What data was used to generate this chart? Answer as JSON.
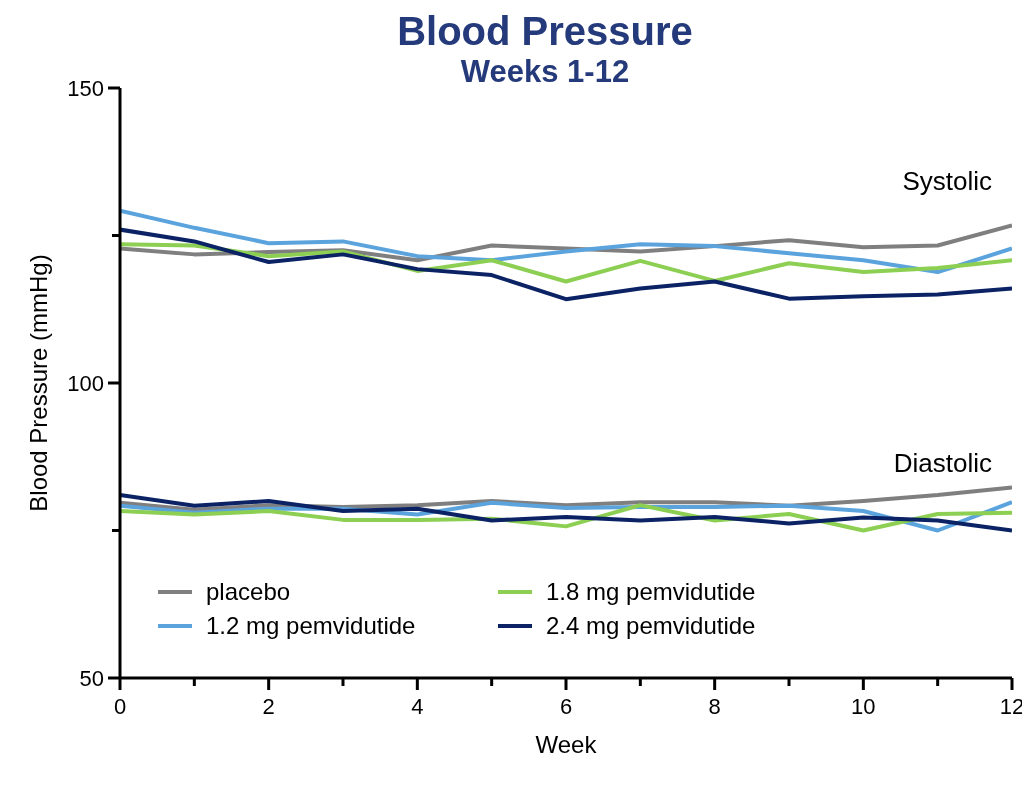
{
  "chart_data": {
    "type": "line",
    "title": "Blood Pressure",
    "subtitle": "Weeks 1-12",
    "xlabel": "Week",
    "ylabel": "Blood Pressure (mmHg)",
    "x": [
      0,
      1,
      2,
      3,
      4,
      5,
      6,
      7,
      8,
      9,
      10,
      11,
      12
    ],
    "series": [
      {
        "name": "placebo",
        "color": "#7f7f7f",
        "values": [
          122.8,
          121.8,
          122.2,
          122.5,
          120.8,
          123.3,
          122.8,
          122.3,
          123.2,
          124.2,
          123,
          123.3,
          126.7
        ]
      },
      {
        "name": "1.2 mg pemvidutide",
        "color": "#5ba3dd",
        "values": [
          129.2,
          126.3,
          123.7,
          124,
          121.5,
          120.8,
          122.3,
          123.5,
          123.2,
          122,
          120.8,
          118.8,
          122.8
        ]
      },
      {
        "name": "1.8 mg pemvidutide",
        "color": "#8ccf52",
        "values": [
          123.5,
          123.3,
          121.5,
          122.3,
          119,
          120.8,
          117.2,
          120.7,
          117.3,
          120.3,
          118.8,
          119.5,
          120.8
        ]
      },
      {
        "name": "2.4 mg pemvidutide",
        "color": "#0b2265",
        "values": [
          126,
          124,
          120.5,
          121.8,
          119.3,
          118.3,
          114.2,
          116,
          117.2,
          114.3,
          114.7,
          115,
          116
        ]
      },
      {
        "color": "#7f7f7f",
        "values": [
          79.7,
          78.5,
          79.3,
          79,
          79.3,
          80,
          79.3,
          79.8,
          79.8,
          79.2,
          80,
          81,
          82.3
        ]
      },
      {
        "color": "#5ba3dd",
        "values": [
          79.2,
          78,
          78.7,
          78.7,
          77.7,
          79.7,
          78.8,
          79,
          79,
          79.2,
          78.3,
          75,
          79.8
        ]
      },
      {
        "color": "#8ccf52",
        "values": [
          78.3,
          77.7,
          78.3,
          76.8,
          76.8,
          77,
          75.7,
          79.3,
          76.7,
          77.8,
          75,
          77.8,
          78
        ]
      },
      {
        "color": "#0b2265",
        "values": [
          81,
          79.2,
          80,
          78.3,
          78.7,
          76.7,
          77.3,
          76.7,
          77.3,
          76.2,
          77.2,
          76.7,
          75
        ]
      }
    ],
    "annotations": [
      "Systolic",
      "Diastolic"
    ],
    "xlim": [
      0,
      12
    ],
    "xticks": [
      0,
      {
        "value": 1,
        "label": null
      },
      2,
      {
        "value": 3,
        "label": null
      },
      4,
      {
        "value": 5,
        "label": null
      },
      6,
      {
        "value": 7,
        "label": null
      },
      8,
      {
        "value": 9,
        "label": null
      },
      10,
      {
        "value": 11,
        "label": null
      },
      12
    ],
    "ylim": [
      50,
      150
    ],
    "yticks": [
      50,
      {
        "value": 75,
        "label": null
      },
      100,
      {
        "value": 125,
        "label": null
      },
      150
    ],
    "legend": "bottom left",
    "marker": "none",
    "line_style": "solid"
  }
}
